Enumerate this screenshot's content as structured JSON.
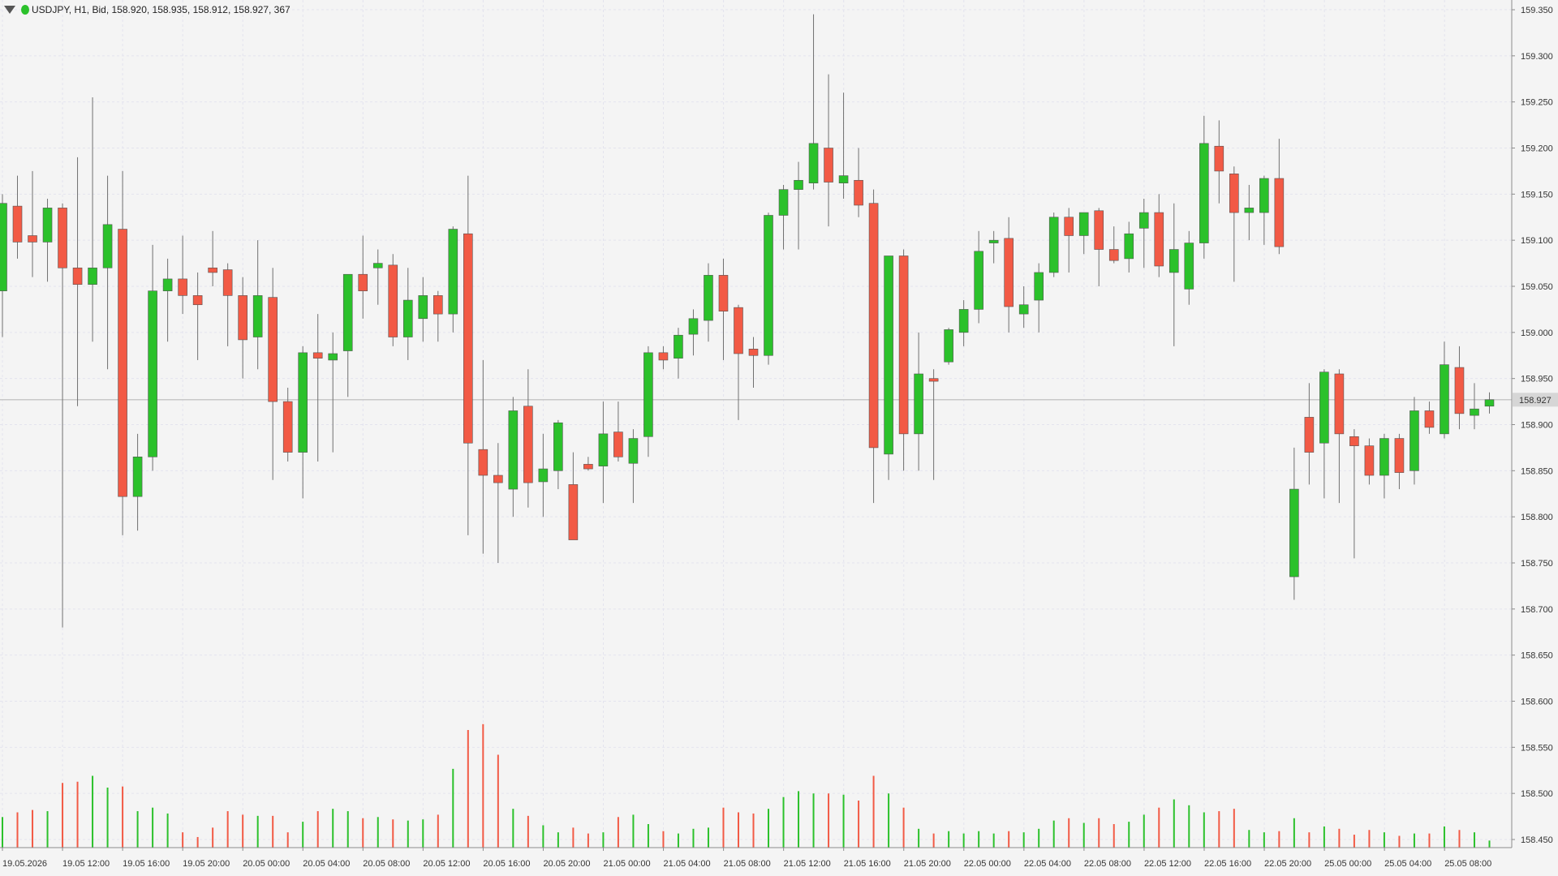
{
  "header": {
    "symbol_info": "USDJPY, H1, Bid, 158.920, 158.935, 158.912, 158.927, 367"
  },
  "colors": {
    "background": "#f4f4f4",
    "grid": "#e3e3ee",
    "bull": "#2bc12b",
    "bear": "#f25a45",
    "axis": "#8c8c8c",
    "current_line": "#c8c8c8",
    "price_label_bg": "#d6d6d6"
  },
  "chart_data": {
    "type": "candlestick",
    "symbol": "USDJPY",
    "timeframe": "H1",
    "price_axis": {
      "range": [
        158.45,
        159.35
      ],
      "ticks": [
        "159.350",
        "159.300",
        "159.250",
        "159.200",
        "159.150",
        "159.100",
        "159.050",
        "159.000",
        "158.950",
        "158.900",
        "158.850",
        "158.800",
        "158.750",
        "158.700",
        "158.650",
        "158.600",
        "158.550",
        "158.500",
        "158.450"
      ]
    },
    "current_price": "158.927",
    "time_labels": [
      "19.05.2026",
      "19.05 12:00",
      "19.05 16:00",
      "19.05 20:00",
      "20.05 00:00",
      "20.05 04:00",
      "20.05 08:00",
      "20.05 12:00",
      "20.05 16:00",
      "20.05 20:00",
      "21.05 00:00",
      "21.05 04:00",
      "21.05 08:00",
      "21.05 12:00",
      "21.05 16:00",
      "21.05 20:00",
      "22.05 00:00",
      "22.05 04:00",
      "22.05 08:00",
      "22.05 12:00",
      "22.05 16:00",
      "22.05 20:00",
      "25.05 00:00",
      "25.05 04:00",
      "25.05 08:00"
    ],
    "candles": [
      {
        "o": 159.045,
        "h": 159.15,
        "l": 158.995,
        "c": 159.14
      },
      {
        "o": 159.137,
        "h": 159.17,
        "l": 159.08,
        "c": 159.098
      },
      {
        "o": 159.105,
        "h": 159.175,
        "l": 159.06,
        "c": 159.098
      },
      {
        "o": 159.098,
        "h": 159.145,
        "l": 159.055,
        "c": 159.135
      },
      {
        "o": 159.135,
        "h": 159.14,
        "l": 158.68,
        "c": 159.07
      },
      {
        "o": 159.07,
        "h": 159.19,
        "l": 158.92,
        "c": 159.052
      },
      {
        "o": 159.052,
        "h": 159.255,
        "l": 158.99,
        "c": 159.07
      },
      {
        "o": 159.07,
        "h": 159.17,
        "l": 158.96,
        "c": 159.117
      },
      {
        "o": 159.112,
        "h": 159.175,
        "l": 158.78,
        "c": 158.822
      },
      {
        "o": 158.822,
        "h": 158.89,
        "l": 158.785,
        "c": 158.865
      },
      {
        "o": 158.865,
        "h": 159.095,
        "l": 158.85,
        "c": 159.045
      },
      {
        "o": 159.045,
        "h": 159.08,
        "l": 158.99,
        "c": 159.058
      },
      {
        "o": 159.058,
        "h": 159.105,
        "l": 159.02,
        "c": 159.04
      },
      {
        "o": 159.04,
        "h": 159.065,
        "l": 158.97,
        "c": 159.03
      },
      {
        "o": 159.07,
        "h": 159.11,
        "l": 159.05,
        "c": 159.065
      },
      {
        "o": 159.068,
        "h": 159.075,
        "l": 158.985,
        "c": 159.04
      },
      {
        "o": 159.04,
        "h": 159.06,
        "l": 158.95,
        "c": 158.992
      },
      {
        "o": 158.995,
        "h": 159.1,
        "l": 158.96,
        "c": 159.04
      },
      {
        "o": 159.038,
        "h": 159.07,
        "l": 158.84,
        "c": 158.925
      },
      {
        "o": 158.925,
        "h": 158.94,
        "l": 158.86,
        "c": 158.87
      },
      {
        "o": 158.87,
        "h": 158.985,
        "l": 158.82,
        "c": 158.978
      },
      {
        "o": 158.978,
        "h": 159.02,
        "l": 158.86,
        "c": 158.972
      },
      {
        "o": 158.97,
        "h": 159.0,
        "l": 158.87,
        "c": 158.977
      },
      {
        "o": 158.98,
        "h": 159.06,
        "l": 158.93,
        "c": 159.063
      },
      {
        "o": 159.063,
        "h": 159.105,
        "l": 159.015,
        "c": 159.045
      },
      {
        "o": 159.07,
        "h": 159.09,
        "l": 159.03,
        "c": 159.075
      },
      {
        "o": 159.073,
        "h": 159.085,
        "l": 158.985,
        "c": 158.995
      },
      {
        "o": 158.995,
        "h": 159.07,
        "l": 158.97,
        "c": 159.035
      },
      {
        "o": 159.015,
        "h": 159.06,
        "l": 158.99,
        "c": 159.04
      },
      {
        "o": 159.04,
        "h": 159.045,
        "l": 158.99,
        "c": 159.02
      },
      {
        "o": 159.02,
        "h": 159.115,
        "l": 159.0,
        "c": 159.112
      },
      {
        "o": 159.107,
        "h": 159.17,
        "l": 158.78,
        "c": 158.88
      },
      {
        "o": 158.873,
        "h": 158.97,
        "l": 158.76,
        "c": 158.845
      },
      {
        "o": 158.845,
        "h": 158.88,
        "l": 158.75,
        "c": 158.837
      },
      {
        "o": 158.83,
        "h": 158.93,
        "l": 158.8,
        "c": 158.915
      },
      {
        "o": 158.92,
        "h": 158.96,
        "l": 158.81,
        "c": 158.837
      },
      {
        "o": 158.838,
        "h": 158.89,
        "l": 158.8,
        "c": 158.852
      },
      {
        "o": 158.85,
        "h": 158.905,
        "l": 158.83,
        "c": 158.902
      },
      {
        "o": 158.835,
        "h": 158.87,
        "l": 158.78,
        "c": 158.775
      },
      {
        "o": 158.857,
        "h": 158.865,
        "l": 158.85,
        "c": 158.852
      },
      {
        "o": 158.855,
        "h": 158.925,
        "l": 158.815,
        "c": 158.89
      },
      {
        "o": 158.892,
        "h": 158.925,
        "l": 158.86,
        "c": 158.865
      },
      {
        "o": 158.858,
        "h": 158.895,
        "l": 158.815,
        "c": 158.885
      },
      {
        "o": 158.887,
        "h": 158.985,
        "l": 158.865,
        "c": 158.978
      },
      {
        "o": 158.978,
        "h": 158.985,
        "l": 158.96,
        "c": 158.97
      },
      {
        "o": 158.972,
        "h": 159.005,
        "l": 158.95,
        "c": 158.997
      },
      {
        "o": 158.998,
        "h": 159.025,
        "l": 158.975,
        "c": 159.015
      },
      {
        "o": 159.013,
        "h": 159.075,
        "l": 158.99,
        "c": 159.062
      },
      {
        "o": 159.062,
        "h": 159.08,
        "l": 158.97,
        "c": 159.023
      },
      {
        "o": 159.027,
        "h": 159.03,
        "l": 158.905,
        "c": 158.977
      },
      {
        "o": 158.982,
        "h": 158.995,
        "l": 158.94,
        "c": 158.975
      },
      {
        "o": 158.975,
        "h": 159.13,
        "l": 158.965,
        "c": 159.127
      },
      {
        "o": 159.127,
        "h": 159.16,
        "l": 159.09,
        "c": 159.155
      },
      {
        "o": 159.155,
        "h": 159.185,
        "l": 159.09,
        "c": 159.165
      },
      {
        "o": 159.162,
        "h": 159.345,
        "l": 159.155,
        "c": 159.205
      },
      {
        "o": 159.2,
        "h": 159.28,
        "l": 159.115,
        "c": 159.163
      },
      {
        "o": 159.162,
        "h": 159.26,
        "l": 159.145,
        "c": 159.17
      },
      {
        "o": 159.165,
        "h": 159.2,
        "l": 159.125,
        "c": 159.138
      },
      {
        "o": 159.14,
        "h": 159.155,
        "l": 158.815,
        "c": 158.875
      },
      {
        "o": 158.868,
        "h": 159.08,
        "l": 158.84,
        "c": 159.083
      },
      {
        "o": 159.083,
        "h": 159.09,
        "l": 158.85,
        "c": 158.89
      },
      {
        "o": 158.89,
        "h": 159.0,
        "l": 158.85,
        "c": 158.955
      },
      {
        "o": 158.95,
        "h": 158.96,
        "l": 158.84,
        "c": 158.947
      },
      {
        "o": 158.968,
        "h": 159.005,
        "l": 158.965,
        "c": 159.003
      },
      {
        "o": 159.0,
        "h": 159.035,
        "l": 158.985,
        "c": 159.025
      },
      {
        "o": 159.025,
        "h": 159.11,
        "l": 159.01,
        "c": 159.088
      },
      {
        "o": 159.097,
        "h": 159.11,
        "l": 159.075,
        "c": 159.1
      },
      {
        "o": 159.102,
        "h": 159.125,
        "l": 159.0,
        "c": 159.028
      },
      {
        "o": 159.02,
        "h": 159.05,
        "l": 159.005,
        "c": 159.03
      },
      {
        "o": 159.035,
        "h": 159.075,
        "l": 159.0,
        "c": 159.065
      },
      {
        "o": 159.065,
        "h": 159.13,
        "l": 159.06,
        "c": 159.125
      },
      {
        "o": 159.125,
        "h": 159.135,
        "l": 159.065,
        "c": 159.105
      },
      {
        "o": 159.105,
        "h": 159.13,
        "l": 159.085,
        "c": 159.13
      },
      {
        "o": 159.132,
        "h": 159.135,
        "l": 159.05,
        "c": 159.09
      },
      {
        "o": 159.09,
        "h": 159.115,
        "l": 159.075,
        "c": 159.078
      },
      {
        "o": 159.08,
        "h": 159.12,
        "l": 159.065,
        "c": 159.107
      },
      {
        "o": 159.113,
        "h": 159.145,
        "l": 159.07,
        "c": 159.13
      },
      {
        "o": 159.13,
        "h": 159.15,
        "l": 159.06,
        "c": 159.072
      },
      {
        "o": 159.065,
        "h": 159.14,
        "l": 158.985,
        "c": 159.09
      },
      {
        "o": 159.047,
        "h": 159.11,
        "l": 159.03,
        "c": 159.097
      },
      {
        "o": 159.097,
        "h": 159.235,
        "l": 159.08,
        "c": 159.205
      },
      {
        "o": 159.202,
        "h": 159.23,
        "l": 159.14,
        "c": 159.175
      },
      {
        "o": 159.172,
        "h": 159.18,
        "l": 159.055,
        "c": 159.13
      },
      {
        "o": 159.13,
        "h": 159.16,
        "l": 159.1,
        "c": 159.135
      },
      {
        "o": 159.13,
        "h": 159.17,
        "l": 159.095,
        "c": 159.167
      },
      {
        "o": 159.167,
        "h": 159.21,
        "l": 159.085,
        "c": 159.093
      },
      {
        "o": 158.735,
        "h": 158.875,
        "l": 158.71,
        "c": 158.83
      },
      {
        "o": 158.908,
        "h": 158.945,
        "l": 158.835,
        "c": 158.87
      },
      {
        "o": 158.88,
        "h": 158.96,
        "l": 158.82,
        "c": 158.957
      },
      {
        "o": 158.955,
        "h": 158.96,
        "l": 158.815,
        "c": 158.89
      },
      {
        "o": 158.887,
        "h": 158.895,
        "l": 158.755,
        "c": 158.877
      },
      {
        "o": 158.877,
        "h": 158.885,
        "l": 158.835,
        "c": 158.845
      },
      {
        "o": 158.845,
        "h": 158.89,
        "l": 158.82,
        "c": 158.885
      },
      {
        "o": 158.885,
        "h": 158.89,
        "l": 158.83,
        "c": 158.848
      },
      {
        "o": 158.85,
        "h": 158.93,
        "l": 158.835,
        "c": 158.915
      },
      {
        "o": 158.915,
        "h": 158.925,
        "l": 158.89,
        "c": 158.897
      },
      {
        "o": 158.89,
        "h": 158.99,
        "l": 158.885,
        "c": 158.965
      },
      {
        "o": 158.962,
        "h": 158.985,
        "l": 158.895,
        "c": 158.912
      },
      {
        "o": 158.91,
        "h": 158.945,
        "l": 158.895,
        "c": 158.917
      },
      {
        "o": 158.92,
        "h": 158.935,
        "l": 158.912,
        "c": 158.927
      }
    ],
    "volumes": [
      0.26,
      0.3,
      0.32,
      0.31,
      0.55,
      0.56,
      0.61,
      0.51,
      0.52,
      0.31,
      0.34,
      0.29,
      0.13,
      0.09,
      0.17,
      0.31,
      0.28,
      0.27,
      0.27,
      0.13,
      0.22,
      0.31,
      0.33,
      0.31,
      0.25,
      0.26,
      0.24,
      0.23,
      0.24,
      0.28,
      0.67,
      1.0,
      1.05,
      0.79,
      0.33,
      0.27,
      0.19,
      0.13,
      0.17,
      0.12,
      0.13,
      0.26,
      0.28,
      0.2,
      0.14,
      0.12,
      0.16,
      0.17,
      0.34,
      0.3,
      0.29,
      0.33,
      0.43,
      0.48,
      0.46,
      0.46,
      0.45,
      0.4,
      0.61,
      0.46,
      0.34,
      0.16,
      0.12,
      0.14,
      0.12,
      0.14,
      0.12,
      0.14,
      0.13,
      0.16,
      0.23,
      0.25,
      0.21,
      0.25,
      0.2,
      0.22,
      0.28,
      0.34,
      0.41,
      0.36,
      0.3,
      0.31,
      0.33,
      0.15,
      0.13,
      0.14,
      0.25,
      0.13,
      0.18,
      0.16,
      0.11,
      0.15,
      0.13,
      0.1,
      0.12,
      0.12,
      0.18,
      0.15,
      0.13,
      0.06
    ]
  }
}
